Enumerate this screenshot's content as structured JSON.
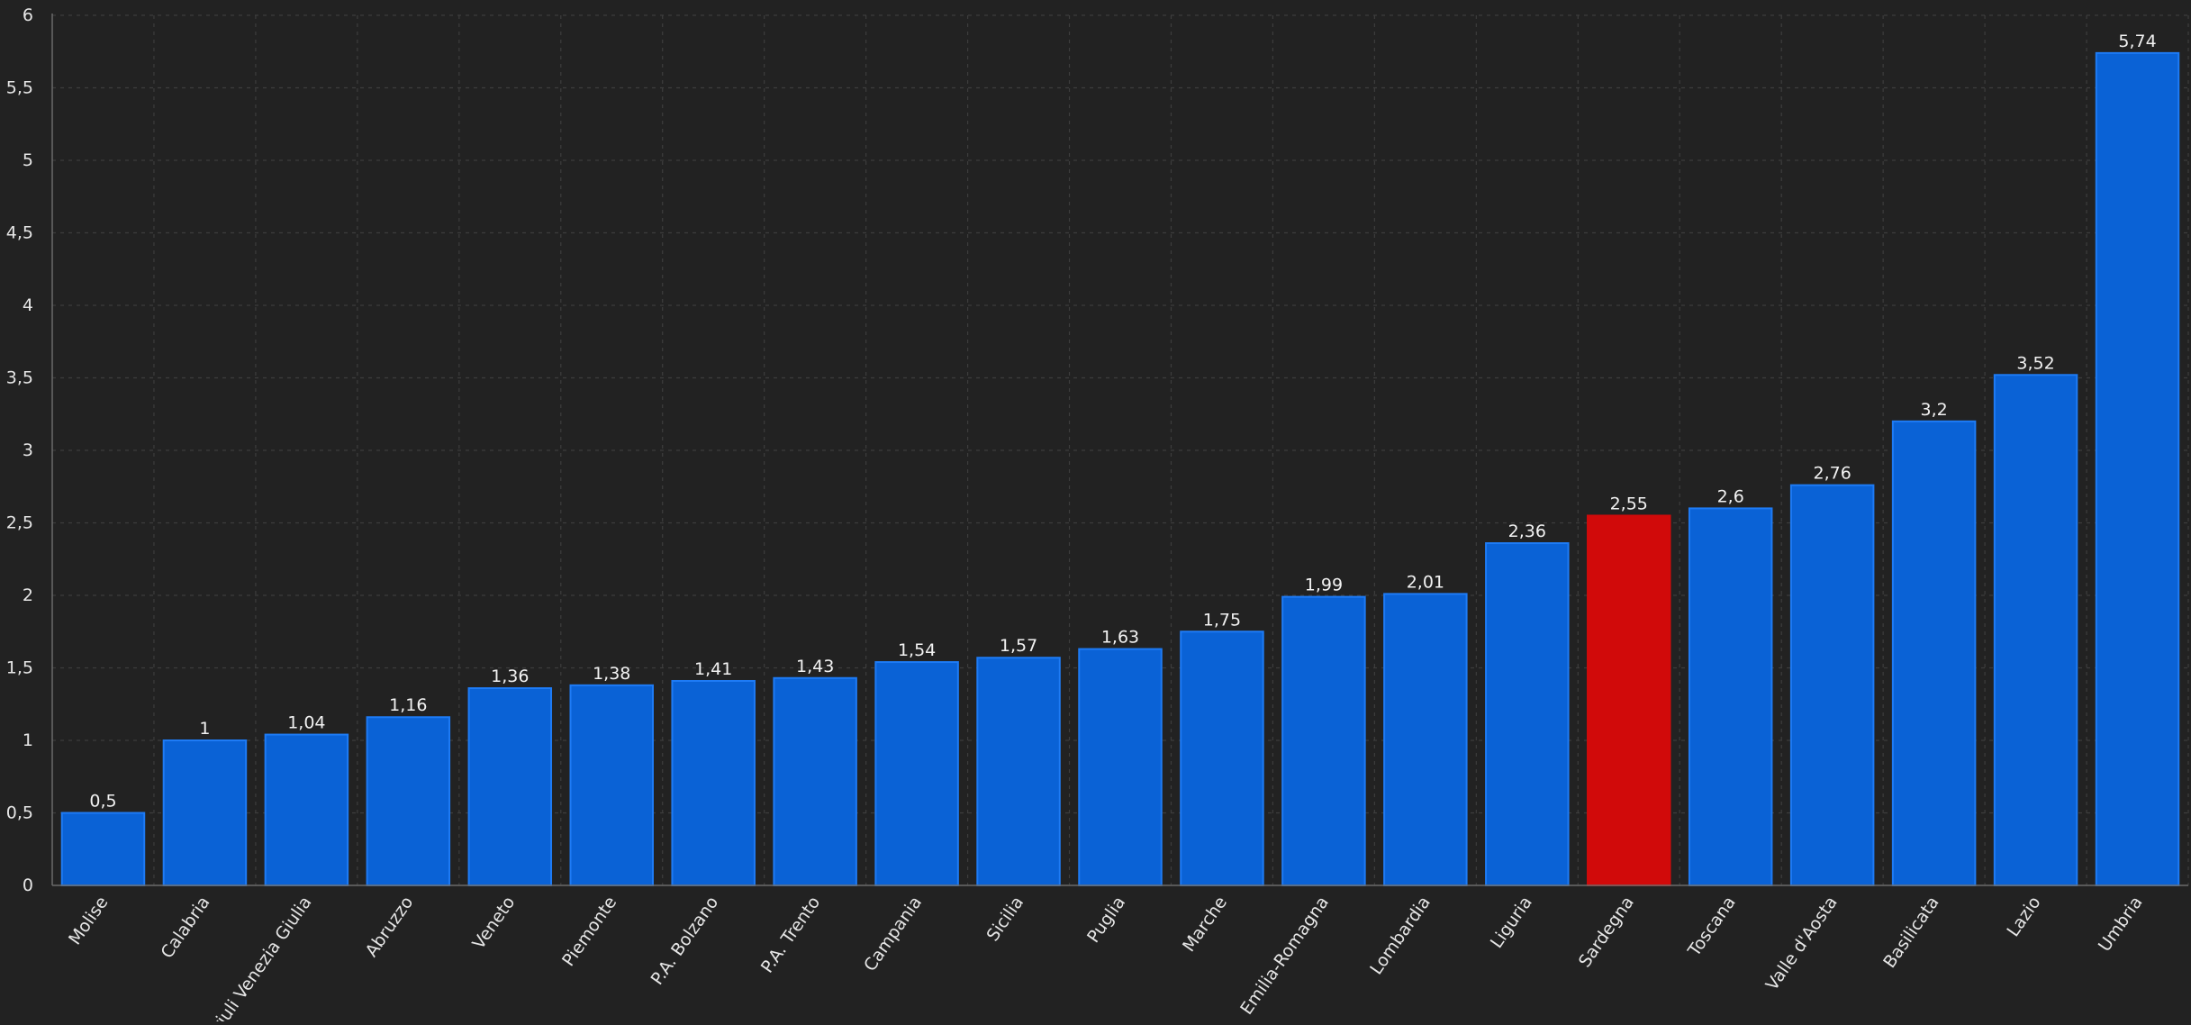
{
  "chart_data": {
    "type": "bar",
    "categories": [
      "Molise",
      "Calabria",
      "Friuli Venezia Giulia",
      "Abruzzo",
      "Veneto",
      "Piemonte",
      "P.A. Bolzano",
      "P.A. Trento",
      "Campania",
      "Sicilia",
      "Puglia",
      "Marche",
      "Emilia-Romagna",
      "Lombardia",
      "Liguria",
      "Sardegna",
      "Toscana",
      "Valle d'Aosta",
      "Basilicata",
      "Lazio",
      "Umbria"
    ],
    "values": [
      0.5,
      1,
      1.04,
      1.16,
      1.36,
      1.38,
      1.41,
      1.43,
      1.54,
      1.57,
      1.63,
      1.75,
      1.99,
      2.01,
      2.36,
      2.55,
      2.6,
      2.76,
      3.2,
      3.52,
      5.74
    ],
    "value_labels": [
      "0,5",
      "1",
      "1,04",
      "1,16",
      "1,36",
      "1,38",
      "1,41",
      "1,43",
      "1,54",
      "1,57",
      "1,63",
      "1,75",
      "1,99",
      "2,01",
      "2,36",
      "2,55",
      "2,6",
      "2,76",
      "3,2",
      "3,52",
      "5,74"
    ],
    "highlight_category": "Sardegna",
    "colors": {
      "bar": "#0a62d6",
      "bar_stroke": "#1e7bf5",
      "highlight": "#d10a0a",
      "background": "#222222"
    },
    "ylim": [
      0,
      6
    ],
    "y_ticks": [
      0,
      0.5,
      1,
      1.5,
      2,
      2.5,
      3,
      3.5,
      4,
      4.5,
      5,
      5.5,
      6
    ],
    "y_tick_labels": [
      "0",
      "0,5",
      "1",
      "1,5",
      "2",
      "2,5",
      "3",
      "3,5",
      "4",
      "4,5",
      "5",
      "5,5",
      "6"
    ],
    "grid": true,
    "legend": "none"
  }
}
